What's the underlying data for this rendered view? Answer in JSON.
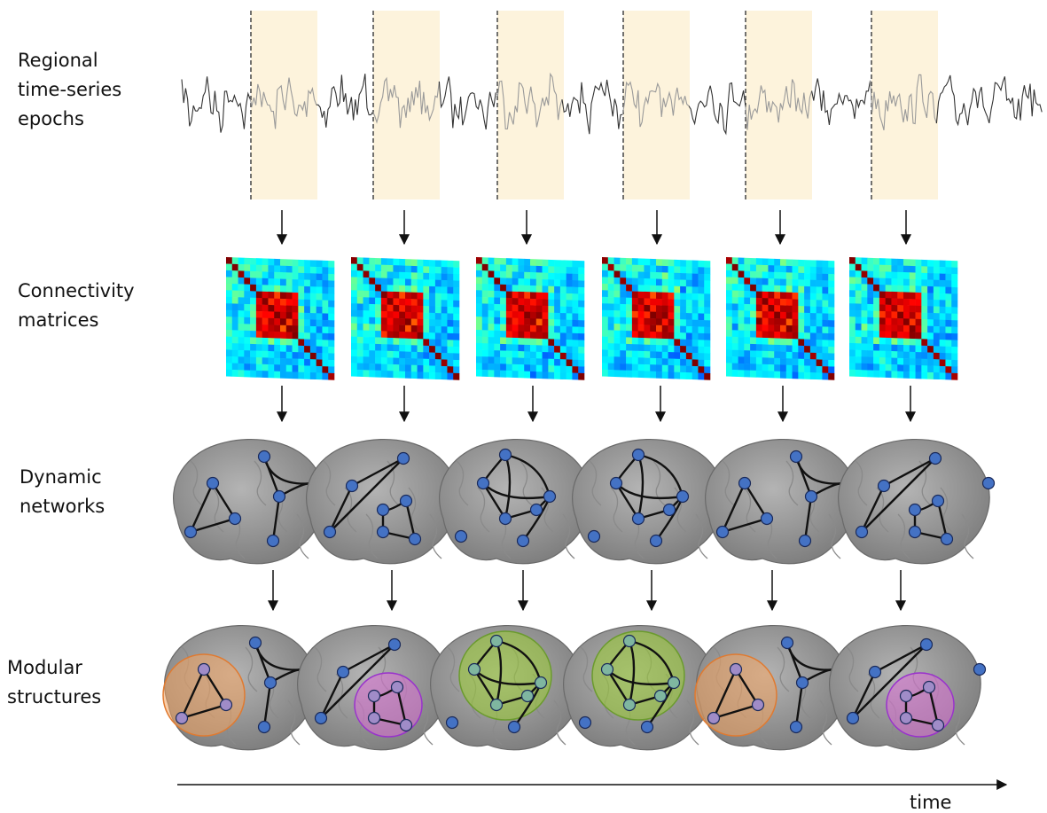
{
  "rows": [
    {
      "label": [
        "Regional",
        "time-series",
        "epochs"
      ]
    },
    {
      "label": [
        "Connectivity",
        "matrices"
      ]
    },
    {
      "label": [
        "Dynamic",
        "networks"
      ]
    },
    {
      "label": [
        "Modular",
        "structures"
      ]
    }
  ],
  "axis": {
    "label": "time"
  }
}
